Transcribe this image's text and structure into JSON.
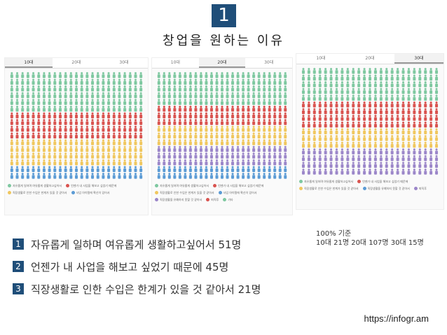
{
  "badge": "1",
  "title": "창업을 원하는 이유",
  "panels": [
    {
      "tabs": [
        "10대",
        "20대",
        "30대"
      ],
      "active": 0,
      "rows": [
        "g",
        "g",
        "g",
        "g",
        "g",
        "g",
        "r",
        "r",
        "r",
        "r",
        "y",
        "y",
        "y",
        "y",
        "b",
        "b"
      ],
      "legend": [
        "자유롭게 일하며 여유롭게 생활하고싶어서",
        "언젠가 내 사업을 해보고 싶었기 때문에",
        "직장생활로 인한 수입은 한계가 있을 것 같아서",
        "사업 아이템에 확신이 있어서"
      ]
    },
    {
      "tabs": [
        "10대",
        "20대",
        "30대"
      ],
      "active": 1,
      "rows": [
        "g",
        "g",
        "g",
        "g",
        "g",
        "r",
        "r",
        "r",
        "y",
        "y",
        "y",
        "p",
        "p",
        "p",
        "b",
        "b"
      ],
      "legend": [
        "자유롭게 일하며 여유롭게 생활하고싶어서",
        "언젠가 내 사업을 해보고 싶었기 때문에",
        "직장생활로 인한 수입은 한계가 있을 것 같아서",
        "사업 아이템에 확신이 있어서",
        "직장생활을 유예하지 못할 것 같아서",
        "퇴직후",
        "기타"
      ]
    },
    {
      "tabs": [
        "10대",
        "20대",
        "30대"
      ],
      "active": 2,
      "rows": [
        "g",
        "g",
        "g",
        "g",
        "g",
        "r",
        "r",
        "r",
        "r",
        "y",
        "y",
        "y",
        "p",
        "p",
        "p",
        "p"
      ],
      "legend": [
        "자유롭게 일하며 여유롭게 생활하고싶어서",
        "언젠가 내 사업을 해보고 싶었기 때문에",
        "직장생활로 인한 수입은 한계가 있을 것 같아서",
        "직장생활을 유예하지 못할 것 같아서",
        "퇴직후"
      ]
    }
  ],
  "colors": {
    "g": "#7ec8a0",
    "r": "#d9534f",
    "y": "#f0c75e",
    "b": "#5b9bd5",
    "p": "#9b86c9",
    "accent": "#1f4e79"
  },
  "reasons": [
    {
      "num": "1",
      "text": "자유롭게 일하며 여유롭게 생활하고싶어서 51명"
    },
    {
      "num": "2",
      "text": "언젠가 내 사업을 해보고 싶었기 때문에 45명"
    },
    {
      "num": "3",
      "text": "직장생활로 인한 수입은 한계가 있을 것 같아서 21명"
    }
  ],
  "note": {
    "line1": "100% 기준",
    "line2": "10대 21명 20대 107명 30대 15명"
  },
  "url": "https://infogr.am"
}
